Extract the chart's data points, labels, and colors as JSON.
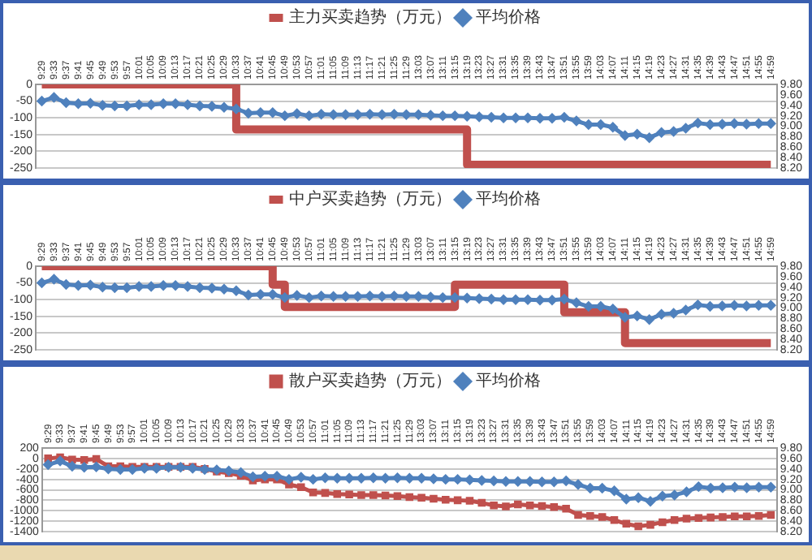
{
  "chart_data": [
    {
      "type": "line",
      "categories": [
        "9:29",
        "9:33",
        "9:37",
        "9:41",
        "9:45",
        "9:49",
        "9:53",
        "9:57",
        "10:01",
        "10:05",
        "10:09",
        "10:13",
        "10:17",
        "10:21",
        "10:25",
        "10:29",
        "10:33",
        "10:37",
        "10:41",
        "10:45",
        "10:49",
        "10:53",
        "10:57",
        "11:01",
        "11:05",
        "11:09",
        "11:13",
        "11:17",
        "11:21",
        "11:25",
        "11:29",
        "13:03",
        "13:07",
        "13:11",
        "13:15",
        "13:19",
        "13:23",
        "13:27",
        "13:31",
        "13:35",
        "13:39",
        "13:43",
        "13:47",
        "13:51",
        "13:55",
        "13:59",
        "14:03",
        "14:07",
        "14:11",
        "14:15",
        "14:19",
        "14:23",
        "14:27",
        "14:31",
        "14:35",
        "14:39",
        "14:43",
        "14:47",
        "14:51",
        "14:55",
        "14:59"
      ],
      "series": [
        {
          "name": "主力买卖趋势（万元）",
          "type": "step",
          "color": "#c0504d",
          "marker": "none",
          "values": [
            0,
            0,
            0,
            0,
            0,
            0,
            0,
            0,
            0,
            0,
            0,
            0,
            0,
            0,
            0,
            0,
            0,
            -135,
            -135,
            -135,
            -135,
            -135,
            -135,
            -135,
            -135,
            -135,
            -135,
            -135,
            -135,
            -135,
            -135,
            -135,
            -135,
            -135,
            -135,
            -135,
            -240,
            -240,
            -240,
            -240,
            -240,
            -240,
            -240,
            -240,
            -240,
            -240,
            -240,
            -240,
            -240,
            -240,
            -240,
            -240,
            -240,
            -240,
            -240,
            -240,
            -240,
            -240,
            -240,
            -240,
            -240
          ]
        },
        {
          "name": "平均价格",
          "type": "line",
          "axis": "y2",
          "color": "#4f81bd",
          "marker": "diamond",
          "values": [
            9.48,
            9.55,
            9.45,
            9.43,
            9.44,
            9.4,
            9.39,
            9.39,
            9.41,
            9.41,
            9.43,
            9.43,
            9.41,
            9.39,
            9.38,
            9.36,
            9.33,
            9.25,
            9.26,
            9.26,
            9.2,
            9.24,
            9.2,
            9.23,
            9.22,
            9.22,
            9.22,
            9.23,
            9.22,
            9.23,
            9.22,
            9.22,
            9.21,
            9.2,
            9.2,
            9.19,
            9.18,
            9.17,
            9.16,
            9.16,
            9.16,
            9.15,
            9.15,
            9.17,
            9.1,
            9.03,
            9.03,
            8.98,
            8.82,
            8.85,
            8.78,
            8.88,
            8.9,
            8.96,
            9.06,
            9.03,
            9.04,
            9.05,
            9.04,
            9.05,
            9.05
          ]
        }
      ],
      "ylim": [
        -250,
        0
      ],
      "yticks": [
        -250,
        -200,
        -150,
        -100,
        -50,
        0
      ],
      "y2lim": [
        8.2,
        9.8
      ],
      "y2ticks": [
        {
          "value": 8.2,
          "label": "8.20"
        },
        {
          "value": 8.4,
          "label": "8.40"
        },
        {
          "value": 8.6,
          "label": "8.60"
        },
        {
          "value": 8.8,
          "label": "8.80"
        },
        {
          "value": 9.0,
          "label": "9.00"
        },
        {
          "value": 9.2,
          "label": "9.20"
        },
        {
          "value": 9.4,
          "label": "9.40"
        },
        {
          "value": 9.6,
          "label": "9.60"
        },
        {
          "value": 9.8,
          "label": "9.80"
        }
      ],
      "grid": "y",
      "legend": "top"
    },
    {
      "type": "line",
      "categories": [
        "9:29",
        "9:33",
        "9:37",
        "9:41",
        "9:45",
        "9:49",
        "9:53",
        "9:57",
        "10:01",
        "10:05",
        "10:09",
        "10:13",
        "10:17",
        "10:21",
        "10:25",
        "10:29",
        "10:33",
        "10:37",
        "10:41",
        "10:45",
        "10:49",
        "10:53",
        "10:57",
        "11:01",
        "11:05",
        "11:09",
        "11:13",
        "11:17",
        "11:21",
        "11:25",
        "11:29",
        "13:03",
        "13:07",
        "13:11",
        "13:15",
        "13:19",
        "13:23",
        "13:27",
        "13:31",
        "13:35",
        "13:39",
        "13:43",
        "13:47",
        "13:51",
        "13:55",
        "13:59",
        "14:03",
        "14:07",
        "14:11",
        "14:15",
        "14:19",
        "14:23",
        "14:27",
        "14:31",
        "14:35",
        "14:39",
        "14:43",
        "14:47",
        "14:51",
        "14:55",
        "14:59"
      ],
      "series": [
        {
          "name": "中户买卖趋势（万元）",
          "type": "step",
          "color": "#c0504d",
          "marker": "none",
          "values": [
            0,
            0,
            0,
            0,
            0,
            0,
            0,
            0,
            0,
            0,
            0,
            0,
            0,
            0,
            0,
            0,
            0,
            0,
            0,
            0,
            -55,
            -122,
            -122,
            -122,
            -122,
            -122,
            -122,
            -122,
            -122,
            -122,
            -122,
            -122,
            -122,
            -122,
            -122,
            -55,
            -55,
            -55,
            -55,
            -55,
            -55,
            -55,
            -55,
            -55,
            -138,
            -138,
            -138,
            -138,
            -138,
            -230,
            -230,
            -230,
            -230,
            -230,
            -230,
            -230,
            -230,
            -230,
            -230,
            -230,
            -230
          ]
        },
        {
          "name": "平均价格",
          "type": "line",
          "axis": "y2",
          "color": "#4f81bd",
          "marker": "diamond",
          "values": [
            9.48,
            9.55,
            9.45,
            9.43,
            9.44,
            9.4,
            9.39,
            9.39,
            9.41,
            9.41,
            9.43,
            9.43,
            9.41,
            9.39,
            9.38,
            9.36,
            9.33,
            9.25,
            9.26,
            9.26,
            9.2,
            9.24,
            9.2,
            9.23,
            9.22,
            9.22,
            9.22,
            9.23,
            9.22,
            9.23,
            9.22,
            9.22,
            9.21,
            9.2,
            9.2,
            9.19,
            9.18,
            9.17,
            9.16,
            9.16,
            9.16,
            9.15,
            9.15,
            9.17,
            9.1,
            9.03,
            9.03,
            8.98,
            8.82,
            8.85,
            8.78,
            8.88,
            8.9,
            8.96,
            9.06,
            9.03,
            9.04,
            9.05,
            9.04,
            9.05,
            9.05
          ]
        }
      ],
      "ylim": [
        -250,
        0
      ],
      "yticks": [
        -250,
        -200,
        -150,
        -100,
        -50,
        0
      ],
      "y2lim": [
        8.2,
        9.8
      ],
      "y2ticks": [
        {
          "value": 8.2,
          "label": "8.20"
        },
        {
          "value": 8.4,
          "label": "8.40"
        },
        {
          "value": 8.6,
          "label": "8.60"
        },
        {
          "value": 8.8,
          "label": "8.80"
        },
        {
          "value": 9.0,
          "label": "9.00"
        },
        {
          "value": 9.2,
          "label": "9.20"
        },
        {
          "value": 9.4,
          "label": "9.40"
        },
        {
          "value": 9.6,
          "label": "9.60"
        },
        {
          "value": 9.8,
          "label": "9.80"
        }
      ],
      "grid": "y",
      "legend": "top"
    },
    {
      "type": "line",
      "categories": [
        "9:29",
        "9:33",
        "9:37",
        "9:41",
        "9:45",
        "9:49",
        "9:53",
        "9:57",
        "10:01",
        "10:05",
        "10:09",
        "10:13",
        "10:17",
        "10:21",
        "10:25",
        "10:29",
        "10:33",
        "10:37",
        "10:41",
        "10:45",
        "10:49",
        "10:53",
        "10:57",
        "11:01",
        "11:05",
        "11:09",
        "11:13",
        "11:17",
        "11:21",
        "11:25",
        "11:29",
        "13:03",
        "13:07",
        "13:11",
        "13:15",
        "13:19",
        "13:23",
        "13:27",
        "13:31",
        "13:35",
        "13:39",
        "13:43",
        "13:47",
        "13:51",
        "13:55",
        "13:59",
        "14:03",
        "14:07",
        "14:11",
        "14:15",
        "14:19",
        "14:23",
        "14:27",
        "14:31",
        "14:35",
        "14:39",
        "14:43",
        "14:47",
        "14:51",
        "14:55",
        "14:59"
      ],
      "series": [
        {
          "name": "散户买卖趋势（万元）",
          "type": "line",
          "color": "#c0504d",
          "marker": "square",
          "values": [
            0,
            20,
            -20,
            -30,
            -10,
            -150,
            -150,
            -160,
            -160,
            -160,
            -160,
            -160,
            -160,
            -200,
            -250,
            -280,
            -330,
            -420,
            -400,
            -400,
            -500,
            -550,
            -650,
            -660,
            -680,
            -690,
            -700,
            -700,
            -710,
            -720,
            -740,
            -750,
            -770,
            -790,
            -800,
            -810,
            -850,
            -900,
            -920,
            -880,
            -900,
            -910,
            -930,
            -960,
            -1080,
            -1100,
            -1120,
            -1180,
            -1250,
            -1300,
            -1270,
            -1220,
            -1180,
            -1150,
            -1140,
            -1130,
            -1120,
            -1110,
            -1110,
            -1100,
            -1080
          ]
        },
        {
          "name": "平均价格",
          "type": "line",
          "axis": "y2",
          "color": "#4f81bd",
          "marker": "diamond",
          "values": [
            9.48,
            9.55,
            9.45,
            9.43,
            9.44,
            9.4,
            9.39,
            9.39,
            9.41,
            9.41,
            9.43,
            9.43,
            9.41,
            9.39,
            9.38,
            9.36,
            9.33,
            9.25,
            9.26,
            9.26,
            9.2,
            9.24,
            9.2,
            9.23,
            9.22,
            9.22,
            9.22,
            9.23,
            9.22,
            9.23,
            9.22,
            9.22,
            9.21,
            9.2,
            9.2,
            9.19,
            9.18,
            9.17,
            9.16,
            9.16,
            9.16,
            9.15,
            9.15,
            9.17,
            9.1,
            9.03,
            9.03,
            8.98,
            8.82,
            8.85,
            8.78,
            8.88,
            8.9,
            8.96,
            9.06,
            9.03,
            9.04,
            9.05,
            9.04,
            9.05,
            9.05
          ]
        }
      ],
      "ylim": [
        -1400,
        200
      ],
      "yticks": [
        -1400,
        -1200,
        -1000,
        -800,
        -600,
        -400,
        -200,
        0,
        200
      ],
      "y2lim": [
        8.2,
        9.8
      ],
      "y2ticks": [
        {
          "value": 8.2,
          "label": "8.20"
        },
        {
          "value": 8.4,
          "label": "8.40"
        },
        {
          "value": 8.6,
          "label": "8.60"
        },
        {
          "value": 8.8,
          "label": "8.80"
        },
        {
          "value": 9.0,
          "label": "9.00"
        },
        {
          "value": 9.2,
          "label": "9.20"
        },
        {
          "value": 9.4,
          "label": "9.40"
        },
        {
          "value": 9.6,
          "label": "9.60"
        },
        {
          "value": 9.8,
          "label": "9.80"
        }
      ],
      "grid": "y",
      "legend": "top"
    }
  ]
}
